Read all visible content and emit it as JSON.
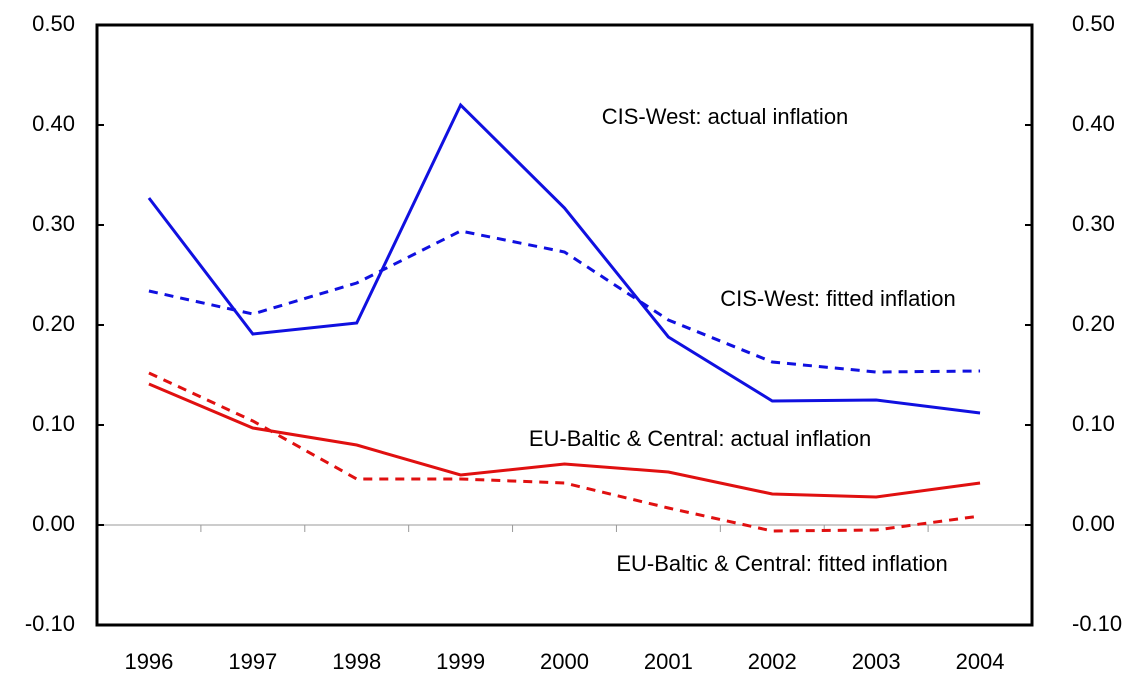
{
  "chart_data": {
    "type": "line",
    "categories": [
      "1996",
      "1997",
      "1998",
      "1999",
      "2000",
      "2001",
      "2002",
      "2003",
      "2004"
    ],
    "series": [
      {
        "name": "CIS-West: actual inflation",
        "color": "#1010e0",
        "dash": false,
        "values": [
          0.327,
          0.191,
          0.202,
          0.42,
          0.317,
          0.188,
          0.124,
          0.125,
          0.112
        ]
      },
      {
        "name": "CIS-West: fitted inflation",
        "color": "#1010e0",
        "dash": true,
        "values": [
          0.234,
          0.211,
          0.242,
          0.294,
          0.273,
          0.205,
          0.163,
          0.153,
          0.154
        ]
      },
      {
        "name": "EU-Baltic & Central: actual inflation",
        "color": "#e01010",
        "dash": false,
        "values": [
          0.141,
          0.097,
          0.08,
          0.05,
          0.061,
          0.053,
          0.031,
          0.028,
          0.042
        ]
      },
      {
        "name": "EU-Baltic & Central: fitted inflation",
        "color": "#e01010",
        "dash": true,
        "values": [
          0.152,
          0.104,
          0.046,
          0.046,
          0.042,
          0.017,
          -0.006,
          -0.005,
          0.009
        ]
      }
    ],
    "ylim": [
      -0.1,
      0.5
    ],
    "yticks": [
      {
        "value": -0.1,
        "label": "-0.10"
      },
      {
        "value": 0,
        "label": "0.00"
      },
      {
        "value": 0.1,
        "label": "0.10"
      },
      {
        "value": 0.2,
        "label": "0.20"
      },
      {
        "value": 0.3,
        "label": "0.30"
      },
      {
        "value": 0.4,
        "label": "0.40"
      },
      {
        "value": 0.5,
        "label": "0.50"
      }
    ],
    "y2lim": [
      -0.1,
      0.5
    ],
    "y2ticks": [
      {
        "value": -0.1,
        "label": "-0.10"
      },
      {
        "value": 0,
        "label": "0.00"
      },
      {
        "value": 0.1,
        "label": "0.10"
      },
      {
        "value": 0.2,
        "label": "0.20"
      },
      {
        "value": 0.3,
        "label": "0.30"
      },
      {
        "value": 0.4,
        "label": "0.40"
      },
      {
        "value": 0.5,
        "label": "0.50"
      }
    ]
  }
}
